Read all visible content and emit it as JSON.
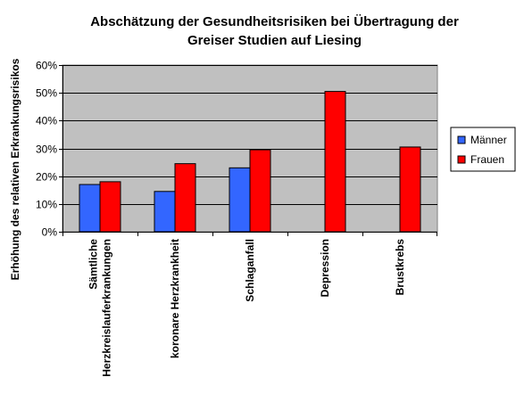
{
  "chart_data": {
    "type": "bar",
    "title_lines": [
      "Abschätzung der Gesundheitsrisiken bei Übertragung der",
      "Greiser Studien auf Liesing"
    ],
    "ylabel": "Erhöhung des relativen Erkrankungsrisikos",
    "xlabel": "",
    "ylim": [
      0,
      60
    ],
    "y_ticks": [
      "0%",
      "10%",
      "20%",
      "30%",
      "40%",
      "50%",
      "60%"
    ],
    "y_tick_values": [
      0,
      10,
      20,
      30,
      40,
      50,
      60
    ],
    "categories": [
      [
        "Sämtliche",
        "Herzkreislauferkrankungen"
      ],
      [
        "koronare Herzkrankheit"
      ],
      [
        "Schlaganfall"
      ],
      [
        "Depression"
      ],
      [
        "Brustkrebs"
      ]
    ],
    "series": [
      {
        "name": "Männer",
        "color": "#3366ff",
        "values": [
          17,
          14.5,
          23,
          null,
          null
        ]
      },
      {
        "name": "Frauen",
        "color": "#ff0000",
        "values": [
          18,
          24.5,
          29.5,
          50.5,
          30.5
        ]
      }
    ],
    "plot_background": "#c0c0c0",
    "grid": true,
    "legend_position": "right"
  }
}
